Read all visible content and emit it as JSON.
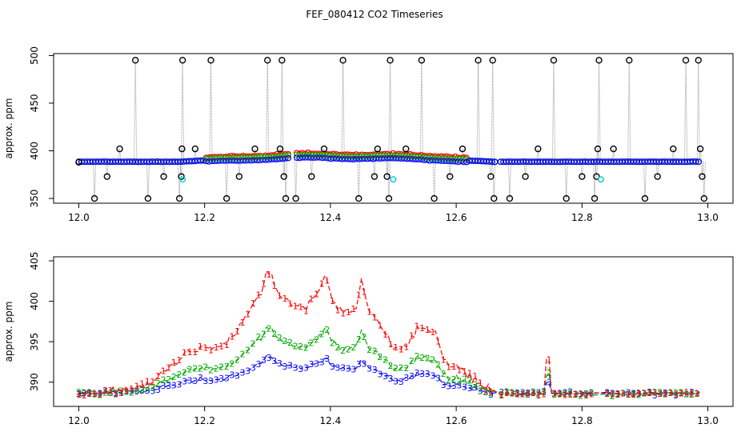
{
  "title": "FEF_080412  CO2 Timeseries",
  "chart_data": [
    {
      "type": "scatter",
      "ylabel": "approx. ppm",
      "xlim": [
        11.96,
        13.04
      ],
      "ylim": [
        345,
        502
      ],
      "xticks": [
        12.0,
        12.2,
        12.4,
        12.6,
        12.8,
        13.0
      ],
      "xtick_labels": [
        "12.0",
        "12.2",
        "12.4",
        "12.6",
        "12.8",
        "13.0"
      ],
      "yticks": [
        350,
        400,
        450,
        500
      ],
      "ytick_labels": [
        "350",
        "400",
        "450",
        "500"
      ],
      "series_colors": [
        "#000000",
        "#ff0000",
        "#00cc00",
        "#0000ff",
        "#00cccc"
      ],
      "markers": "circle",
      "spikes": [
        {
          "x": 12.0,
          "y": 388
        },
        {
          "x": 12.025,
          "y": 350
        },
        {
          "x": 12.045,
          "y": 373
        },
        {
          "x": 12.065,
          "y": 402
        },
        {
          "x": 12.09,
          "y": 495
        },
        {
          "x": 12.11,
          "y": 350
        },
        {
          "x": 12.135,
          "y": 373
        },
        {
          "x": 12.16,
          "y": 350
        },
        {
          "x": 12.163,
          "y": 373
        },
        {
          "x": 12.164,
          "y": 402
        },
        {
          "x": 12.165,
          "y": 495
        },
        {
          "x": 12.185,
          "y": 402
        },
        {
          "x": 12.21,
          "y": 495
        },
        {
          "x": 12.235,
          "y": 350
        },
        {
          "x": 12.255,
          "y": 373
        },
        {
          "x": 12.28,
          "y": 402
        },
        {
          "x": 12.3,
          "y": 495
        },
        {
          "x": 12.32,
          "y": 402
        },
        {
          "x": 12.323,
          "y": 495
        },
        {
          "x": 12.326,
          "y": 373
        },
        {
          "x": 12.329,
          "y": 350
        },
        {
          "x": 12.345,
          "y": 350
        },
        {
          "x": 12.37,
          "y": 373
        },
        {
          "x": 12.39,
          "y": 402
        },
        {
          "x": 12.42,
          "y": 495
        },
        {
          "x": 12.445,
          "y": 350
        },
        {
          "x": 12.47,
          "y": 373
        },
        {
          "x": 12.475,
          "y": 402
        },
        {
          "x": 12.49,
          "y": 373
        },
        {
          "x": 12.493,
          "y": 350
        },
        {
          "x": 12.495,
          "y": 495
        },
        {
          "x": 12.52,
          "y": 402
        },
        {
          "x": 12.545,
          "y": 495
        },
        {
          "x": 12.565,
          "y": 350
        },
        {
          "x": 12.59,
          "y": 373
        },
        {
          "x": 12.61,
          "y": 402
        },
        {
          "x": 12.635,
          "y": 495
        },
        {
          "x": 12.655,
          "y": 373
        },
        {
          "x": 12.658,
          "y": 495
        },
        {
          "x": 12.66,
          "y": 350
        },
        {
          "x": 12.685,
          "y": 350
        },
        {
          "x": 12.71,
          "y": 373
        },
        {
          "x": 12.73,
          "y": 402
        },
        {
          "x": 12.755,
          "y": 495
        },
        {
          "x": 12.775,
          "y": 350
        },
        {
          "x": 12.8,
          "y": 373
        },
        {
          "x": 12.82,
          "y": 350
        },
        {
          "x": 12.823,
          "y": 373
        },
        {
          "x": 12.825,
          "y": 402
        },
        {
          "x": 12.827,
          "y": 495
        },
        {
          "x": 12.85,
          "y": 402
        },
        {
          "x": 12.875,
          "y": 495
        },
        {
          "x": 12.9,
          "y": 350
        },
        {
          "x": 12.92,
          "y": 373
        },
        {
          "x": 12.945,
          "y": 402
        },
        {
          "x": 12.965,
          "y": 495
        },
        {
          "x": 12.985,
          "y": 495
        },
        {
          "x": 12.988,
          "y": 402
        },
        {
          "x": 12.991,
          "y": 373
        },
        {
          "x": 12.994,
          "y": 350
        }
      ],
      "cyan_points": [
        {
          "x": 12.165,
          "y": 370
        },
        {
          "x": 12.5,
          "y": 370
        },
        {
          "x": 12.83,
          "y": 370
        }
      ]
    },
    {
      "type": "line",
      "ylabel": "approx. ppm",
      "xlim": [
        11.96,
        13.04
      ],
      "ylim": [
        387,
        405.5
      ],
      "xticks": [
        12.0,
        12.2,
        12.4,
        12.6,
        12.8,
        13.0
      ],
      "xtick_labels": [
        "12.0",
        "12.2",
        "12.4",
        "12.6",
        "12.8",
        "13.0"
      ],
      "yticks": [
        390,
        395,
        400,
        405
      ],
      "ytick_labels": [
        "390",
        "395",
        "400",
        "405"
      ],
      "series": [
        {
          "marker": "1",
          "color": "#ff0000",
          "x": [
            12.0,
            12.05,
            12.1,
            12.14,
            12.17,
            12.2,
            12.23,
            12.25,
            12.27,
            12.29,
            12.3,
            12.32,
            12.34,
            12.36,
            12.38,
            12.39,
            12.4,
            12.42,
            12.44,
            12.45,
            12.46,
            12.48,
            12.5,
            12.52,
            12.54,
            12.57,
            12.58,
            12.6,
            12.62,
            12.64,
            12.66
          ],
          "y": [
            388.5,
            388.8,
            389.4,
            391.5,
            393.5,
            394.5,
            394.5,
            396.0,
            399.0,
            401.0,
            404.0,
            400.5,
            399.5,
            399.0,
            401.0,
            403.5,
            400.5,
            398.5,
            399.0,
            402.5,
            399.0,
            397.0,
            394.0,
            394.5,
            397.0,
            396.0,
            392.5,
            392.0,
            391.0,
            389.5,
            389.0
          ]
        }
      ]
    }
  ]
}
